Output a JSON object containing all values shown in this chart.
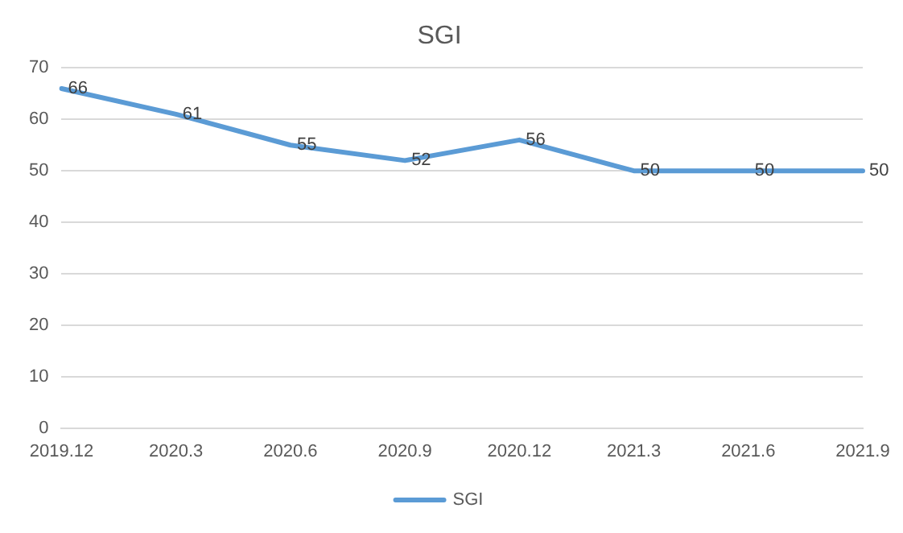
{
  "chart_data": {
    "type": "line",
    "title": "SGI",
    "categories": [
      "2019.12",
      "2020.3",
      "2020.6",
      "2020.9",
      "2020.12",
      "2021.3",
      "2021.6",
      "2021.9"
    ],
    "series": [
      {
        "name": "SGI",
        "color": "#5b9bd5",
        "values": [
          66,
          61,
          55,
          52,
          56,
          50,
          50,
          50
        ]
      }
    ],
    "ylim": [
      0,
      70
    ],
    "yticks": [
      0,
      10,
      20,
      30,
      40,
      50,
      60,
      70
    ],
    "grid": "y",
    "legend": "bottom",
    "marker": "none",
    "line_style": "solid",
    "data_labels": true
  }
}
